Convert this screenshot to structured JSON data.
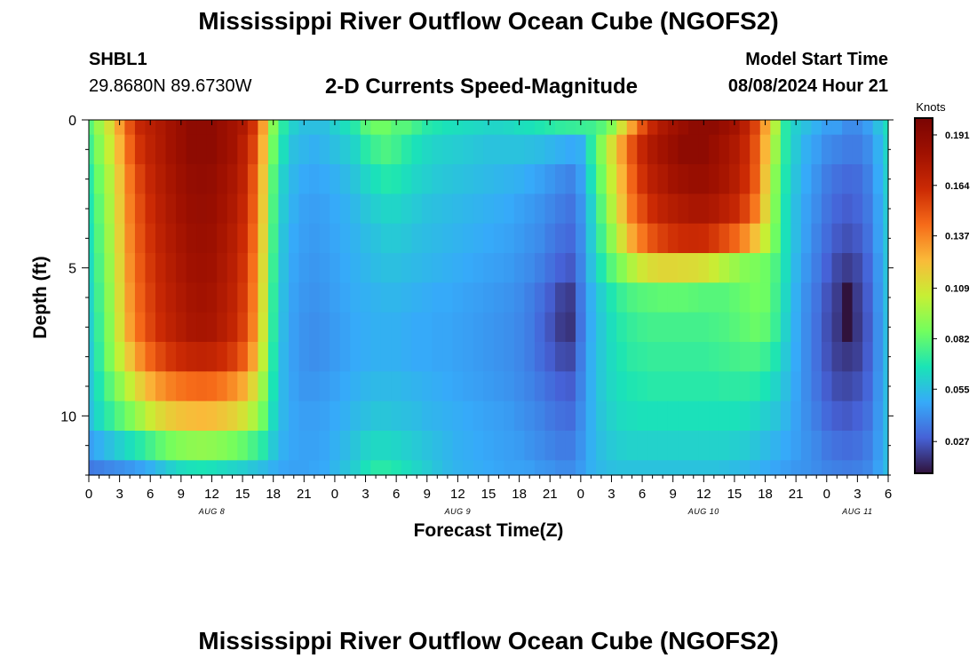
{
  "header": {
    "title": "Mississippi River Outflow Ocean Cube (NGOFS2)",
    "station_id": "SHBL1",
    "coordinates": "29.8680N  89.6730W",
    "subtitle": "2-D Currents Speed-Magnitude",
    "model_start_label": "Model Start Time",
    "model_start_value": "08/08/2024 Hour 21"
  },
  "footer": {
    "title": "Mississippi River Outflow Ocean Cube (NGOFS2)"
  },
  "chart_data": {
    "type": "heatmap",
    "title": "2-D Currents Speed-Magnitude",
    "xlabel": "Forecast Time(Z)",
    "ylabel": "Depth (ft)",
    "colorbar_label": "Knots",
    "x_start": "2024-08-08 00Z",
    "x_hours": [
      0,
      1,
      2,
      3,
      4,
      5,
      6,
      7,
      8,
      9,
      10,
      11,
      12,
      13,
      14,
      15,
      16,
      17,
      18,
      19,
      20,
      21,
      22,
      23,
      24,
      25,
      26,
      27,
      28,
      29,
      30,
      31,
      32,
      33,
      34,
      35,
      36,
      37,
      38,
      39,
      40,
      41,
      42,
      43,
      44,
      45,
      46,
      47,
      48,
      49,
      50,
      51,
      52,
      53,
      54,
      55,
      56,
      57,
      58,
      59,
      60,
      61,
      62,
      63,
      64,
      65,
      66,
      67,
      68,
      69,
      70,
      71,
      72,
      73,
      74,
      75,
      76,
      77,
      78
    ],
    "xlim": [
      0,
      78
    ],
    "ylim": [
      0,
      12
    ],
    "x_ticks": [
      0,
      3,
      6,
      9,
      12,
      15,
      18,
      21,
      24,
      27,
      30,
      33,
      36,
      39,
      42,
      45,
      48,
      51,
      54,
      57,
      60,
      63,
      66,
      69,
      72,
      75,
      78
    ],
    "x_tick_labels": [
      "0",
      "3",
      "6",
      "9",
      "12",
      "15",
      "18",
      "21",
      "0",
      "3",
      "6",
      "9",
      "12",
      "15",
      "18",
      "21",
      "0",
      "3",
      "6",
      "9",
      "12",
      "15",
      "18",
      "21",
      "0",
      "3",
      "6"
    ],
    "date_labels": [
      {
        "label": "AUG 8",
        "hour": 12
      },
      {
        "label": "AUG 9",
        "hour": 36
      },
      {
        "label": "AUG 10",
        "hour": 60
      },
      {
        "label": "AUG 11",
        "hour": 75
      }
    ],
    "y_ticks": [
      0,
      5,
      10
    ],
    "y_tick_labels": [
      "0",
      "5",
      "10"
    ],
    "depth_bins": [
      0,
      0.5,
      1.5,
      2.5,
      3.5,
      4.5,
      5.5,
      6.5,
      7.5,
      8.5,
      9.5,
      10.5,
      11.5,
      12
    ],
    "colorbar": {
      "min": 0.01,
      "max": 0.2,
      "ticks": [
        0.191,
        0.164,
        0.137,
        0.109,
        0.082,
        0.055,
        0.027
      ],
      "tick_labels": [
        "0.191",
        "0.164",
        "0.137",
        "0.109",
        "0.082",
        "0.055",
        "0.027"
      ]
    },
    "speed_knots_rows": [
      [
        0.08,
        0.095,
        0.11,
        0.13,
        0.15,
        0.165,
        0.17,
        0.175,
        0.18,
        0.185,
        0.19,
        0.19,
        0.19,
        0.185,
        0.18,
        0.175,
        0.16,
        0.13,
        0.09,
        0.07,
        0.06,
        0.055,
        0.055,
        0.055,
        0.06,
        0.065,
        0.07,
        0.08,
        0.085,
        0.085,
        0.08,
        0.08,
        0.075,
        0.07,
        0.068,
        0.066,
        0.065,
        0.064,
        0.063,
        0.062,
        0.062,
        0.063,
        0.065,
        0.066,
        0.068,
        0.07,
        0.072,
        0.073,
        0.074,
        0.075,
        0.08,
        0.09,
        0.11,
        0.13,
        0.15,
        0.165,
        0.175,
        0.18,
        0.185,
        0.19,
        0.19,
        0.19,
        0.185,
        0.18,
        0.17,
        0.155,
        0.13,
        0.1,
        0.07,
        0.06,
        0.055,
        0.05,
        0.045,
        0.045,
        0.04,
        0.04,
        0.045,
        0.055,
        0.065
      ],
      [
        0.075,
        0.09,
        0.105,
        0.125,
        0.145,
        0.16,
        0.168,
        0.174,
        0.18,
        0.185,
        0.19,
        0.19,
        0.19,
        0.185,
        0.18,
        0.17,
        0.155,
        0.125,
        0.085,
        0.065,
        0.055,
        0.052,
        0.05,
        0.052,
        0.055,
        0.058,
        0.062,
        0.07,
        0.075,
        0.078,
        0.075,
        0.07,
        0.066,
        0.063,
        0.061,
        0.06,
        0.059,
        0.058,
        0.057,
        0.056,
        0.056,
        0.056,
        0.056,
        0.055,
        0.054,
        0.052,
        0.05,
        0.048,
        0.05,
        0.07,
        0.09,
        0.11,
        0.13,
        0.15,
        0.165,
        0.175,
        0.18,
        0.185,
        0.19,
        0.19,
        0.19,
        0.185,
        0.18,
        0.175,
        0.165,
        0.15,
        0.125,
        0.095,
        0.07,
        0.058,
        0.05,
        0.045,
        0.04,
        0.038,
        0.036,
        0.036,
        0.04,
        0.05,
        0.062
      ],
      [
        0.07,
        0.085,
        0.1,
        0.12,
        0.14,
        0.155,
        0.165,
        0.172,
        0.178,
        0.183,
        0.187,
        0.188,
        0.187,
        0.182,
        0.177,
        0.168,
        0.15,
        0.12,
        0.08,
        0.06,
        0.052,
        0.048,
        0.047,
        0.048,
        0.05,
        0.053,
        0.057,
        0.062,
        0.066,
        0.069,
        0.068,
        0.065,
        0.062,
        0.06,
        0.058,
        0.057,
        0.056,
        0.055,
        0.054,
        0.053,
        0.052,
        0.051,
        0.05,
        0.048,
        0.046,
        0.043,
        0.04,
        0.038,
        0.045,
        0.065,
        0.085,
        0.105,
        0.125,
        0.145,
        0.16,
        0.17,
        0.175,
        0.18,
        0.183,
        0.185,
        0.185,
        0.182,
        0.178,
        0.172,
        0.162,
        0.148,
        0.12,
        0.09,
        0.068,
        0.056,
        0.048,
        0.042,
        0.036,
        0.033,
        0.031,
        0.032,
        0.037,
        0.048,
        0.06
      ],
      [
        0.068,
        0.082,
        0.098,
        0.118,
        0.138,
        0.152,
        0.162,
        0.17,
        0.176,
        0.181,
        0.185,
        0.186,
        0.185,
        0.18,
        0.175,
        0.165,
        0.148,
        0.118,
        0.078,
        0.058,
        0.05,
        0.046,
        0.045,
        0.046,
        0.048,
        0.05,
        0.053,
        0.057,
        0.06,
        0.062,
        0.062,
        0.06,
        0.058,
        0.056,
        0.055,
        0.054,
        0.053,
        0.052,
        0.051,
        0.05,
        0.049,
        0.048,
        0.046,
        0.044,
        0.042,
        0.039,
        0.036,
        0.034,
        0.042,
        0.06,
        0.08,
        0.1,
        0.12,
        0.14,
        0.152,
        0.162,
        0.168,
        0.172,
        0.175,
        0.177,
        0.177,
        0.175,
        0.17,
        0.165,
        0.155,
        0.14,
        0.115,
        0.088,
        0.066,
        0.054,
        0.046,
        0.04,
        0.034,
        0.03,
        0.028,
        0.03,
        0.035,
        0.046,
        0.058
      ],
      [
        0.066,
        0.08,
        0.096,
        0.116,
        0.136,
        0.15,
        0.16,
        0.168,
        0.174,
        0.179,
        0.183,
        0.184,
        0.183,
        0.178,
        0.172,
        0.162,
        0.145,
        0.115,
        0.076,
        0.056,
        0.048,
        0.045,
        0.044,
        0.045,
        0.047,
        0.049,
        0.051,
        0.054,
        0.056,
        0.058,
        0.058,
        0.057,
        0.055,
        0.054,
        0.053,
        0.052,
        0.051,
        0.05,
        0.049,
        0.048,
        0.047,
        0.046,
        0.044,
        0.042,
        0.04,
        0.036,
        0.033,
        0.031,
        0.04,
        0.058,
        0.075,
        0.092,
        0.11,
        0.128,
        0.14,
        0.15,
        0.156,
        0.16,
        0.162,
        0.163,
        0.162,
        0.158,
        0.152,
        0.145,
        0.135,
        0.122,
        0.105,
        0.085,
        0.066,
        0.054,
        0.045,
        0.038,
        0.032,
        0.027,
        0.025,
        0.027,
        0.033,
        0.045,
        0.057
      ],
      [
        0.064,
        0.078,
        0.094,
        0.114,
        0.134,
        0.148,
        0.158,
        0.166,
        0.172,
        0.177,
        0.181,
        0.182,
        0.181,
        0.176,
        0.17,
        0.16,
        0.142,
        0.112,
        0.074,
        0.055,
        0.047,
        0.044,
        0.043,
        0.044,
        0.046,
        0.048,
        0.05,
        0.052,
        0.054,
        0.055,
        0.055,
        0.054,
        0.053,
        0.052,
        0.051,
        0.05,
        0.049,
        0.048,
        0.047,
        0.046,
        0.045,
        0.044,
        0.042,
        0.04,
        0.037,
        0.033,
        0.029,
        0.027,
        0.038,
        0.055,
        0.068,
        0.08,
        0.09,
        0.1,
        0.108,
        0.112,
        0.114,
        0.114,
        0.113,
        0.112,
        0.11,
        0.106,
        0.1,
        0.095,
        0.09,
        0.088,
        0.085,
        0.078,
        0.065,
        0.052,
        0.043,
        0.036,
        0.029,
        0.023,
        0.02,
        0.023,
        0.03,
        0.043,
        0.056
      ],
      [
        0.062,
        0.076,
        0.092,
        0.112,
        0.132,
        0.146,
        0.156,
        0.164,
        0.17,
        0.175,
        0.179,
        0.18,
        0.179,
        0.174,
        0.168,
        0.158,
        0.14,
        0.11,
        0.072,
        0.054,
        0.046,
        0.043,
        0.042,
        0.043,
        0.045,
        0.047,
        0.049,
        0.05,
        0.051,
        0.052,
        0.052,
        0.051,
        0.05,
        0.049,
        0.048,
        0.048,
        0.047,
        0.046,
        0.045,
        0.044,
        0.043,
        0.042,
        0.04,
        0.037,
        0.033,
        0.028,
        0.022,
        0.02,
        0.035,
        0.05,
        0.06,
        0.068,
        0.074,
        0.078,
        0.08,
        0.081,
        0.082,
        0.082,
        0.082,
        0.081,
        0.08,
        0.08,
        0.08,
        0.082,
        0.084,
        0.086,
        0.085,
        0.076,
        0.063,
        0.05,
        0.041,
        0.034,
        0.026,
        0.02,
        0.005,
        0.02,
        0.028,
        0.042,
        0.055
      ],
      [
        0.06,
        0.074,
        0.09,
        0.11,
        0.13,
        0.144,
        0.154,
        0.162,
        0.168,
        0.173,
        0.177,
        0.178,
        0.177,
        0.172,
        0.166,
        0.156,
        0.138,
        0.108,
        0.071,
        0.053,
        0.045,
        0.042,
        0.041,
        0.042,
        0.044,
        0.046,
        0.048,
        0.049,
        0.05,
        0.05,
        0.05,
        0.049,
        0.048,
        0.048,
        0.047,
        0.047,
        0.046,
        0.045,
        0.044,
        0.043,
        0.042,
        0.041,
        0.039,
        0.036,
        0.031,
        0.026,
        0.02,
        0.018,
        0.034,
        0.049,
        0.058,
        0.065,
        0.07,
        0.073,
        0.075,
        0.076,
        0.076,
        0.076,
        0.076,
        0.076,
        0.076,
        0.077,
        0.078,
        0.08,
        0.082,
        0.084,
        0.082,
        0.074,
        0.061,
        0.049,
        0.04,
        0.033,
        0.025,
        0.019,
        0.005,
        0.019,
        0.027,
        0.041,
        0.054
      ],
      [
        0.058,
        0.072,
        0.088,
        0.104,
        0.12,
        0.134,
        0.145,
        0.153,
        0.159,
        0.163,
        0.166,
        0.167,
        0.166,
        0.162,
        0.157,
        0.148,
        0.13,
        0.103,
        0.069,
        0.052,
        0.045,
        0.042,
        0.041,
        0.042,
        0.044,
        0.046,
        0.048,
        0.049,
        0.05,
        0.05,
        0.05,
        0.049,
        0.048,
        0.048,
        0.047,
        0.047,
        0.046,
        0.045,
        0.044,
        0.043,
        0.042,
        0.041,
        0.039,
        0.036,
        0.032,
        0.028,
        0.024,
        0.023,
        0.036,
        0.05,
        0.058,
        0.064,
        0.068,
        0.071,
        0.072,
        0.073,
        0.073,
        0.073,
        0.073,
        0.073,
        0.073,
        0.074,
        0.075,
        0.076,
        0.077,
        0.077,
        0.074,
        0.068,
        0.058,
        0.048,
        0.04,
        0.033,
        0.026,
        0.021,
        0.019,
        0.021,
        0.028,
        0.041,
        0.054
      ],
      [
        0.057,
        0.068,
        0.08,
        0.092,
        0.104,
        0.116,
        0.126,
        0.133,
        0.138,
        0.141,
        0.143,
        0.144,
        0.143,
        0.14,
        0.135,
        0.128,
        0.114,
        0.094,
        0.067,
        0.052,
        0.046,
        0.043,
        0.043,
        0.044,
        0.046,
        0.048,
        0.05,
        0.052,
        0.053,
        0.053,
        0.053,
        0.052,
        0.051,
        0.05,
        0.049,
        0.048,
        0.047,
        0.046,
        0.045,
        0.044,
        0.043,
        0.042,
        0.04,
        0.038,
        0.035,
        0.032,
        0.029,
        0.028,
        0.038,
        0.05,
        0.058,
        0.063,
        0.066,
        0.068,
        0.069,
        0.07,
        0.07,
        0.07,
        0.07,
        0.07,
        0.07,
        0.07,
        0.071,
        0.071,
        0.071,
        0.07,
        0.067,
        0.062,
        0.055,
        0.047,
        0.04,
        0.034,
        0.028,
        0.024,
        0.023,
        0.025,
        0.03,
        0.042,
        0.054
      ],
      [
        0.055,
        0.064,
        0.072,
        0.08,
        0.088,
        0.097,
        0.106,
        0.113,
        0.118,
        0.121,
        0.123,
        0.124,
        0.123,
        0.12,
        0.116,
        0.11,
        0.1,
        0.085,
        0.064,
        0.052,
        0.047,
        0.045,
        0.045,
        0.046,
        0.048,
        0.05,
        0.053,
        0.055,
        0.057,
        0.057,
        0.056,
        0.055,
        0.054,
        0.052,
        0.051,
        0.05,
        0.049,
        0.048,
        0.047,
        0.046,
        0.045,
        0.044,
        0.042,
        0.04,
        0.038,
        0.035,
        0.033,
        0.032,
        0.04,
        0.05,
        0.057,
        0.061,
        0.064,
        0.065,
        0.066,
        0.066,
        0.066,
        0.066,
        0.066,
        0.066,
        0.066,
        0.066,
        0.066,
        0.066,
        0.065,
        0.063,
        0.06,
        0.057,
        0.052,
        0.046,
        0.041,
        0.036,
        0.031,
        0.028,
        0.027,
        0.029,
        0.033,
        0.043,
        0.054
      ],
      [
        0.045,
        0.05,
        0.055,
        0.06,
        0.065,
        0.07,
        0.076,
        0.082,
        0.087,
        0.09,
        0.092,
        0.093,
        0.092,
        0.09,
        0.087,
        0.083,
        0.077,
        0.07,
        0.058,
        0.05,
        0.047,
        0.046,
        0.046,
        0.047,
        0.05,
        0.053,
        0.057,
        0.061,
        0.063,
        0.063,
        0.062,
        0.06,
        0.058,
        0.056,
        0.054,
        0.052,
        0.05,
        0.049,
        0.048,
        0.047,
        0.046,
        0.045,
        0.044,
        0.042,
        0.04,
        0.038,
        0.036,
        0.036,
        0.042,
        0.05,
        0.055,
        0.058,
        0.06,
        0.061,
        0.061,
        0.061,
        0.061,
        0.061,
        0.061,
        0.061,
        0.061,
        0.061,
        0.061,
        0.06,
        0.059,
        0.057,
        0.054,
        0.051,
        0.048,
        0.045,
        0.042,
        0.039,
        0.035,
        0.033,
        0.032,
        0.033,
        0.036,
        0.044,
        0.054
      ],
      [
        0.035,
        0.037,
        0.039,
        0.041,
        0.043,
        0.046,
        0.05,
        0.055,
        0.06,
        0.064,
        0.066,
        0.067,
        0.066,
        0.064,
        0.062,
        0.06,
        0.057,
        0.054,
        0.05,
        0.047,
        0.046,
        0.046,
        0.047,
        0.048,
        0.052,
        0.056,
        0.06,
        0.066,
        0.07,
        0.07,
        0.068,
        0.065,
        0.062,
        0.059,
        0.056,
        0.053,
        0.051,
        0.05,
        0.049,
        0.048,
        0.047,
        0.046,
        0.046,
        0.045,
        0.043,
        0.042,
        0.04,
        0.04,
        0.044,
        0.05,
        0.053,
        0.055,
        0.056,
        0.056,
        0.056,
        0.056,
        0.056,
        0.056,
        0.056,
        0.056,
        0.056,
        0.056,
        0.055,
        0.054,
        0.053,
        0.051,
        0.049,
        0.047,
        0.045,
        0.043,
        0.042,
        0.04,
        0.038,
        0.037,
        0.036,
        0.037,
        0.039,
        0.046,
        0.054
      ]
    ]
  }
}
